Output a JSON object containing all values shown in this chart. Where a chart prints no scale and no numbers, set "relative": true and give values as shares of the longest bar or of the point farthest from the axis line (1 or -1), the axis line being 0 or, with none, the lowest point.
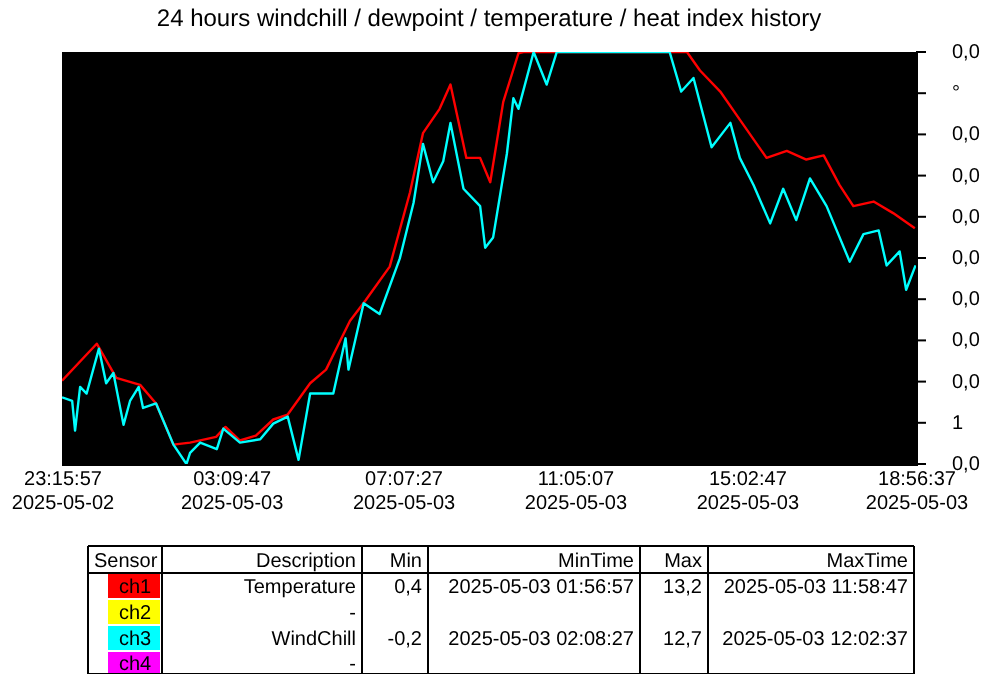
{
  "chart_data": {
    "type": "line",
    "title": "24 hours windchill / dewpoint / temperature / heat index history",
    "relative": true,
    "xlim": [
      "2025-05-02T23:15:57",
      "2025-05-03T18:56:37"
    ],
    "xticks": [
      {
        "value": "2025-05-02T23:15:57",
        "label": "23:15:57 2025-05-02"
      },
      {
        "value": "2025-05-03T03:09:47",
        "label": "03:09:47 2025-05-03"
      },
      {
        "value": "2025-05-03T07:07:27",
        "label": "07:07:27 2025-05-03"
      },
      {
        "value": "2025-05-03T11:05:07",
        "label": "11:05:07 2025-05-03"
      },
      {
        "value": "2025-05-03T15:02:47",
        "label": "15:02:47 2025-05-03"
      },
      {
        "value": "2025-05-03T18:56:37",
        "label": "18:56:37 2025-05-03"
      }
    ],
    "grid": false,
    "series": [
      {
        "color": "#ff0000",
        "x": [
          "2025-05-02T23:16",
          "2025-05-03T00:04",
          "2025-05-03T00:31",
          "2025-05-03T01:04",
          "2025-05-03T01:26",
          "2025-05-03T01:50",
          "2025-05-03T02:13",
          "2025-05-03T02:49",
          "2025-05-03T03:02",
          "2025-05-03T03:22",
          "2025-05-03T03:44",
          "2025-05-03T04:08",
          "2025-05-03T04:28",
          "2025-05-03T04:59",
          "2025-05-03T05:21",
          "2025-05-03T05:54",
          "2025-05-03T06:16",
          "2025-05-03T06:49",
          "2025-05-03T07:17",
          "2025-05-03T07:35",
          "2025-05-03T07:58",
          "2025-05-03T08:13",
          "2025-05-03T08:35",
          "2025-05-03T08:54",
          "2025-05-03T09:08",
          "2025-05-03T09:26",
          "2025-05-03T09:47",
          "2025-05-03T09:54",
          "2025-05-03T13:40",
          "2025-05-03T13:58",
          "2025-05-03T14:26",
          "2025-05-03T14:53",
          "2025-05-03T15:30",
          "2025-05-03T15:58",
          "2025-05-03T16:25",
          "2025-05-03T16:49",
          "2025-05-03T17:11",
          "2025-05-03T17:30",
          "2025-05-03T17:58",
          "2025-05-03T18:25",
          "2025-05-03T18:55"
        ],
        "values": [
          0.202,
          0.292,
          0.209,
          0.192,
          0.147,
          0.047,
          0.052,
          0.066,
          0.09,
          0.057,
          0.069,
          0.108,
          0.12,
          0.196,
          0.229,
          0.347,
          0.398,
          0.479,
          0.659,
          0.803,
          0.862,
          0.921,
          0.743,
          0.743,
          0.684,
          0.879,
          0.997,
          1,
          1,
          0.955,
          0.904,
          0.836,
          0.743,
          0.76,
          0.739,
          0.749,
          0.677,
          0.626,
          0.637,
          0.609,
          0.572
        ]
      },
      {
        "color": "#ffff00",
        "values": [
          null
        ]
      },
      {
        "color": "#00ffff",
        "x": [
          "2025-05-02T23:16",
          "2025-05-02T23:30",
          "2025-05-02T23:34",
          "2025-05-02T23:41",
          "2025-05-02T23:50",
          "2025-05-03T00:07",
          "2025-05-03T00:17",
          "2025-05-03T00:27",
          "2025-05-03T00:41",
          "2025-05-03T00:50",
          "2025-05-03T01:02",
          "2025-05-03T01:08",
          "2025-05-03T01:26",
          "2025-05-03T01:50",
          "2025-05-03T02:08",
          "2025-05-03T02:13",
          "2025-05-03T02:27",
          "2025-05-03T02:50",
          "2025-05-03T02:59",
          "2025-05-03T03:22",
          "2025-05-03T03:50",
          "2025-05-03T04:08",
          "2025-05-03T04:28",
          "2025-05-03T04:43",
          "2025-05-03T04:59",
          "2025-05-03T05:31",
          "2025-05-03T05:48",
          "2025-05-03T05:52",
          "2025-05-03T06:13",
          "2025-05-03T06:35",
          "2025-05-03T07:03",
          "2025-05-03T07:22",
          "2025-05-03T07:35",
          "2025-05-03T07:49",
          "2025-05-03T08:03",
          "2025-05-03T08:13",
          "2025-05-03T08:31",
          "2025-05-03T08:54",
          "2025-05-03T09:01",
          "2025-05-03T09:12",
          "2025-05-03T09:31",
          "2025-05-03T09:40",
          "2025-05-03T09:47",
          "2025-05-03T10:08",
          "2025-05-03T10:26",
          "2025-05-03T10:40",
          "2025-05-03T13:16",
          "2025-05-03T13:32",
          "2025-05-03T13:49",
          "2025-05-03T14:14",
          "2025-05-03T14:40",
          "2025-05-03T14:53",
          "2025-05-03T15:12",
          "2025-05-03T15:35",
          "2025-05-03T15:53",
          "2025-05-03T16:11",
          "2025-05-03T16:30",
          "2025-05-03T16:53",
          "2025-05-03T17:25",
          "2025-05-03T17:44",
          "2025-05-03T18:05",
          "2025-05-03T18:16",
          "2025-05-03T18:34",
          "2025-05-03T18:43",
          "2025-05-03T18:56"
        ],
        "values": [
          0.162,
          0.153,
          0.081,
          0.187,
          0.171,
          0.28,
          0.196,
          0.221,
          0.095,
          0.153,
          0.187,
          0.136,
          0.147,
          0.047,
          0,
          0.027,
          0.052,
          0.036,
          0.086,
          0.052,
          0.06,
          0.098,
          0.115,
          0.01,
          0.171,
          0.171,
          0.305,
          0.229,
          0.39,
          0.364,
          0.499,
          0.634,
          0.777,
          0.684,
          0.735,
          0.828,
          0.668,
          0.626,
          0.525,
          0.55,
          0.753,
          0.888,
          0.862,
          1,
          0.921,
          1,
          1,
          0.904,
          0.937,
          0.769,
          0.828,
          0.743,
          0.677,
          0.584,
          0.668,
          0.592,
          0.693,
          0.626,
          0.491,
          0.558,
          0.567,
          0.482,
          0.516,
          0.423,
          0.482
        ]
      },
      {
        "color": "#ff00ff",
        "values": [
          null
        ]
      }
    ],
    "annotations": [
      "0,0",
      "°",
      "0,0",
      "0,0",
      "0,0",
      "0,0",
      "0,0",
      "0,0",
      "0,0",
      "1",
      "0,0",
      "Sensor",
      "Description",
      "Min",
      "MinTime",
      "Max",
      "MaxTime",
      "ch1",
      "Temperature",
      "0,4",
      "2025-05-03 01:56:57",
      "13,2",
      "2025-05-03 11:58:47",
      "ch2",
      "-",
      "ch3",
      "WindChill",
      "-0,2",
      "2025-05-03 02:08:27",
      "12,7",
      "2025-05-03 12:02:37",
      "ch4",
      "-"
    ]
  }
}
